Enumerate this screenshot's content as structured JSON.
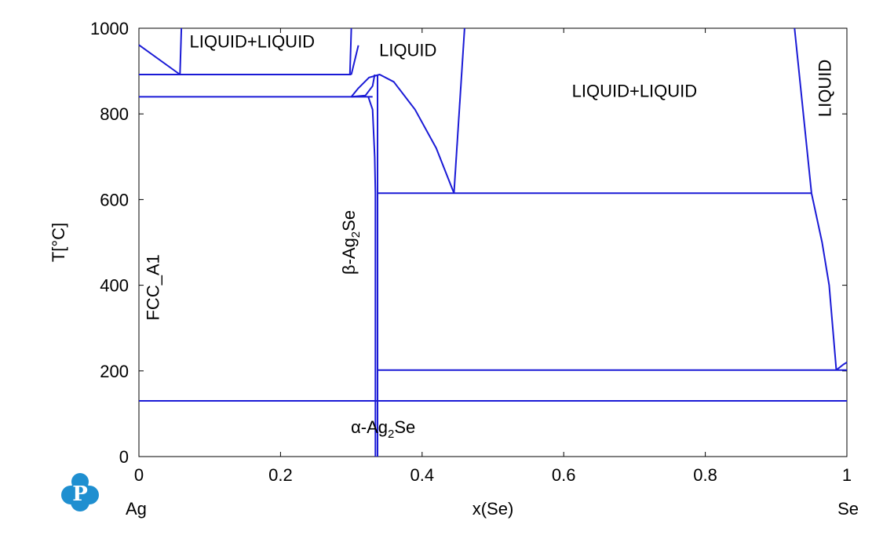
{
  "chart_data": {
    "type": "line",
    "title": "",
    "xlabel": "x(Se)",
    "ylabel": "T[°C]",
    "xlim": [
      0,
      1
    ],
    "ylim": [
      0,
      1000
    ],
    "x_ticks": [
      0,
      0.2,
      0.4,
      0.6,
      0.8,
      1
    ],
    "x_tick_labels": [
      "0",
      "0.2",
      "0.4",
      "0.6",
      "0.8",
      "1"
    ],
    "y_ticks": [
      0,
      200,
      400,
      600,
      800,
      1000
    ],
    "y_tick_labels": [
      "0",
      "200",
      "400",
      "600",
      "800",
      "1000"
    ],
    "left_endmember": "Ag",
    "right_endmember": "Se",
    "line_color": "#1a1ad6",
    "grid": false,
    "logo": "phase-diagram-logo-P",
    "series": [
      {
        "values": [
          [
            0,
            961
          ],
          [
            0.058,
            892
          ]
        ]
      },
      {
        "values": [
          [
            0.058,
            892
          ],
          [
            0.06,
            1000
          ]
        ]
      },
      {
        "values": [
          [
            0,
            892
          ],
          [
            0.3,
            892
          ]
        ]
      },
      {
        "values": [
          [
            0.298,
            892
          ],
          [
            0.3,
            1000
          ]
        ]
      },
      {
        "values": [
          [
            0.3,
            892
          ],
          [
            0.31,
            960
          ]
        ]
      },
      {
        "values": [
          [
            0,
            840
          ],
          [
            0.33,
            840
          ]
        ]
      },
      {
        "values": [
          [
            0.3,
            840
          ],
          [
            0.31,
            860
          ],
          [
            0.325,
            885
          ],
          [
            0.34,
            892
          ],
          [
            0.36,
            875
          ],
          [
            0.39,
            810
          ],
          [
            0.42,
            720
          ],
          [
            0.445,
            615
          ]
        ]
      },
      {
        "values": [
          [
            0.3,
            840
          ],
          [
            0.32,
            843
          ],
          [
            0.33,
            865
          ],
          [
            0.333,
            892
          ]
        ]
      },
      {
        "values": [
          [
            0.324,
            840
          ],
          [
            0.33,
            810
          ],
          [
            0.333,
            700
          ],
          [
            0.334,
            615
          ],
          [
            0.334,
            0
          ]
        ]
      },
      {
        "values": [
          [
            0.337,
            892
          ],
          [
            0.337,
            0
          ]
        ]
      },
      {
        "values": [
          [
            0.337,
            615
          ],
          [
            0.95,
            615
          ]
        ]
      },
      {
        "values": [
          [
            0.445,
            615
          ],
          [
            0.46,
            1000
          ]
        ]
      },
      {
        "values": [
          [
            0.926,
            1000
          ],
          [
            0.95,
            615
          ]
        ]
      },
      {
        "values": [
          [
            0.95,
            615
          ],
          [
            0.965,
            500
          ],
          [
            0.975,
            400
          ],
          [
            0.98,
            300
          ],
          [
            0.985,
            202
          ]
        ]
      },
      {
        "values": [
          [
            0.337,
            202
          ],
          [
            1,
            202
          ]
        ]
      },
      {
        "values": [
          [
            0.985,
            202
          ],
          [
            0.995,
            215
          ],
          [
            1,
            220
          ]
        ]
      },
      {
        "values": [
          [
            0,
            130
          ],
          [
            1,
            130
          ]
        ]
      }
    ],
    "annotations": [
      {
        "id": "liquid-liquid-left",
        "text": "LIQUID+LIQUID",
        "x": 0.16,
        "y": 955
      },
      {
        "id": "liquid-left",
        "text": "LIQUID",
        "x": 0.38,
        "y": 935
      },
      {
        "id": "liquid-liquid-right",
        "text": "LIQUID+LIQUID",
        "x": 0.7,
        "y": 840
      },
      {
        "id": "liquid-right",
        "text": "LIQUID",
        "x": 0.977,
        "y": 860,
        "rotate": true
      },
      {
        "id": "fcc-a1",
        "text": "FCC_A1",
        "x": 0.028,
        "y": 395,
        "rotate": true
      },
      {
        "id": "beta-ag2se",
        "text": "β-Ag",
        "sub": "2",
        "tail": "Se",
        "x": 0.305,
        "y": 500,
        "rotate": true
      },
      {
        "id": "alpha-ag2se",
        "text": "α-Ag",
        "sub": "2",
        "tail": "Se",
        "x": 0.345,
        "y": 55
      }
    ]
  }
}
